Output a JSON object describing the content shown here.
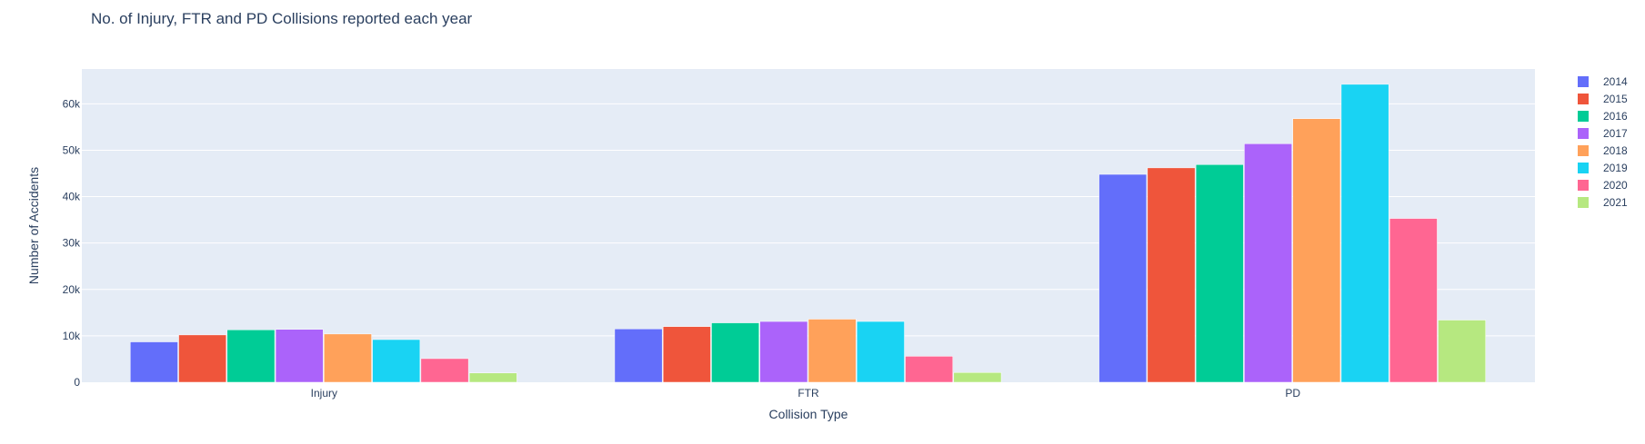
{
  "chart_data": {
    "type": "bar",
    "title": "No. of Injury, FTR and PD Collisions reported each year",
    "xlabel": "Collision Type",
    "ylabel": "Number of Accidents",
    "categories": [
      "Injury",
      "FTR",
      "PD"
    ],
    "ylim": [
      0,
      67500
    ],
    "yticks": [
      0,
      10000,
      20000,
      30000,
      40000,
      50000,
      60000
    ],
    "ytick_labels": [
      "0",
      "10k",
      "20k",
      "30k",
      "40k",
      "50k",
      "60k"
    ],
    "grid": true,
    "legend_position": "right",
    "plot_background": "#E5ECF6",
    "series": [
      {
        "name": "2014",
        "color": "#636EFA",
        "values": [
          8700,
          11500,
          44800
        ]
      },
      {
        "name": "2015",
        "color": "#EF553B",
        "values": [
          10200,
          12000,
          46200
        ]
      },
      {
        "name": "2016",
        "color": "#00CC96",
        "values": [
          11300,
          12800,
          46900
        ]
      },
      {
        "name": "2017",
        "color": "#AB63FA",
        "values": [
          11400,
          13100,
          51400
        ]
      },
      {
        "name": "2018",
        "color": "#FFA15A",
        "values": [
          10400,
          13600,
          56800
        ]
      },
      {
        "name": "2019",
        "color": "#19D3F3",
        "values": [
          9200,
          13100,
          64200
        ]
      },
      {
        "name": "2020",
        "color": "#FF6692",
        "values": [
          5100,
          5600,
          35300
        ]
      },
      {
        "name": "2021",
        "color": "#B6E880",
        "values": [
          2000,
          2100,
          13400
        ]
      }
    ]
  }
}
